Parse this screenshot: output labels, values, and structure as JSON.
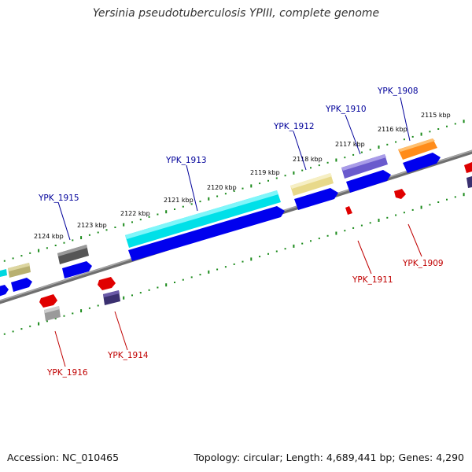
{
  "title": "Yersinia pseudotuberculosis YPIII, complete genome",
  "footer": {
    "accession": "Accession: NC_010465",
    "summary": "Topology: circular; Length: 4,689,441 bp; Genes: 4,290"
  },
  "colors": {
    "backbone": "#888888",
    "tick": "#1a8a1a",
    "forward_label": "#00009a",
    "reverse_label": "#c00000",
    "tick_label": "#000000"
  },
  "ticks": [
    "2115 kbp",
    "2116 kbp",
    "2117 kbp",
    "2118 kbp",
    "2119 kbp",
    "2120 kbp",
    "2121 kbp",
    "2122 kbp",
    "2123 kbp",
    "2124 kbp"
  ],
  "forward_genes": [
    "YPK_1908",
    "YPK_1910",
    "YPK_1912",
    "YPK_1913",
    "YPK_1915"
  ],
  "reverse_genes": [
    "YPK_1909",
    "YPK_1911",
    "YPK_1914",
    "YPK_1916"
  ]
}
